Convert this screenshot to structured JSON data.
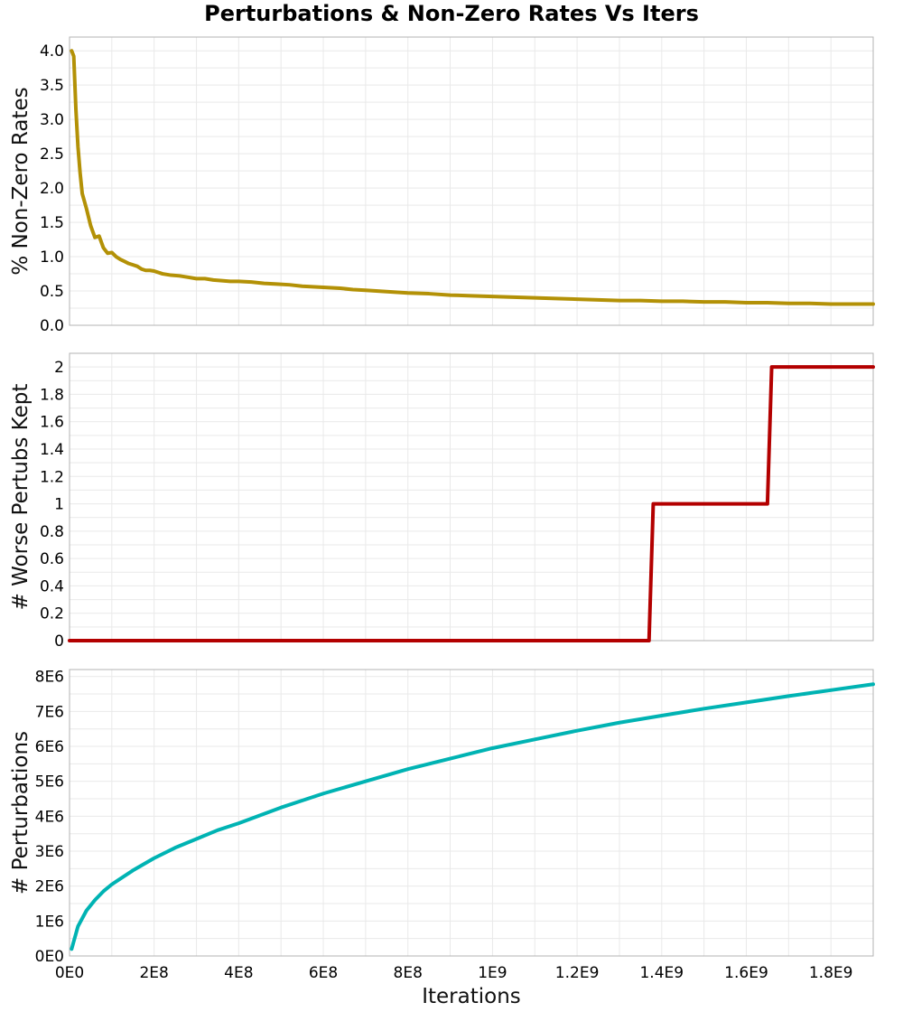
{
  "chart_data": {
    "title": "Perturbations & Non-Zero Rates Vs Iters",
    "type": "line",
    "shared_x": {
      "label": "Iterations",
      "range": [
        0,
        1900000000
      ],
      "ticks": [
        0,
        200000000,
        400000000,
        600000000,
        800000000,
        1000000000,
        1200000000,
        1400000000,
        1600000000,
        1800000000
      ],
      "tick_labels": [
        "0E0",
        "2E8",
        "4E8",
        "6E8",
        "8E8",
        "1E9",
        "1.2E9",
        "1.4E9",
        "1.6E9",
        "1.8E9"
      ]
    },
    "grid": true,
    "panels": [
      {
        "ylabel": "% Non-Zero Rates",
        "ylim": [
          0,
          4.2
        ],
        "yticks": [
          0,
          0.5,
          1,
          1.5,
          2,
          2.5,
          3,
          3.5,
          4
        ],
        "ytick_labels": [
          "0.0",
          "0.5",
          "1.0",
          "1.5",
          "2.0",
          "2.5",
          "3.0",
          "3.5",
          "4.0"
        ],
        "color": "#b39106",
        "series": [
          {
            "x": [
              5000000,
              10000000,
              15000000,
              20000000,
              25000000,
              30000000,
              40000000,
              50000000,
              60000000,
              70000000,
              80000000,
              90000000,
              100000000,
              110000000,
              120000000,
              130000000,
              140000000,
              150000000,
              160000000,
              170000000,
              180000000,
              190000000,
              200000000,
              220000000,
              240000000,
              260000000,
              280000000,
              300000000,
              320000000,
              340000000,
              360000000,
              380000000,
              400000000,
              430000000,
              460000000,
              490000000,
              520000000,
              550000000,
              580000000,
              610000000,
              640000000,
              670000000,
              700000000,
              750000000,
              800000000,
              850000000,
              900000000,
              950000000,
              1000000000,
              1050000000,
              1100000000,
              1150000000,
              1200000000,
              1250000000,
              1300000000,
              1350000000,
              1400000000,
              1450000000,
              1500000000,
              1550000000,
              1600000000,
              1650000000,
              1700000000,
              1750000000,
              1800000000,
              1850000000,
              1900000000
            ],
            "y": [
              4.0,
              3.92,
              3.15,
              2.6,
              2.22,
              1.92,
              1.7,
              1.45,
              1.28,
              1.3,
              1.13,
              1.05,
              1.06,
              1.0,
              0.96,
              0.93,
              0.9,
              0.88,
              0.86,
              0.82,
              0.8,
              0.8,
              0.79,
              0.75,
              0.73,
              0.72,
              0.7,
              0.68,
              0.68,
              0.66,
              0.65,
              0.64,
              0.64,
              0.63,
              0.61,
              0.6,
              0.59,
              0.57,
              0.56,
              0.55,
              0.54,
              0.52,
              0.51,
              0.49,
              0.47,
              0.46,
              0.44,
              0.43,
              0.42,
              0.41,
              0.4,
              0.39,
              0.38,
              0.37,
              0.36,
              0.36,
              0.35,
              0.35,
              0.34,
              0.34,
              0.33,
              0.33,
              0.32,
              0.32,
              0.31,
              0.31,
              0.31
            ]
          }
        ]
      },
      {
        "ylabel": "# Worse Pertubs Kept",
        "ylim": [
          0,
          2.1
        ],
        "yticks": [
          0,
          0.2,
          0.4,
          0.6,
          0.8,
          1,
          1.2,
          1.4,
          1.6,
          1.8,
          2
        ],
        "ytick_labels": [
          "0",
          "0.2",
          "0.4",
          "0.6",
          "0.8",
          "1",
          "1.2",
          "1.4",
          "1.6",
          "1.8",
          "2"
        ],
        "color": "#b30000",
        "series": [
          {
            "x": [
              0,
              1370000000,
              1380000000,
              1650000000,
              1660000000,
              1900000000
            ],
            "y": [
              0,
              0,
              1,
              1,
              2,
              2
            ]
          }
        ]
      },
      {
        "ylabel": "# Perturbations",
        "ylim": [
          0,
          8200000
        ],
        "yticks": [
          0,
          1000000,
          2000000,
          3000000,
          4000000,
          5000000,
          6000000,
          7000000,
          8000000
        ],
        "ytick_labels": [
          "0E0",
          "1E6",
          "2E6",
          "3E6",
          "4E6",
          "5E6",
          "6E6",
          "7E6",
          "8E6"
        ],
        "color": "#00b3b3",
        "series": [
          {
            "x": [
              5000000,
              20000000,
              40000000,
              60000000,
              80000000,
              100000000,
              150000000,
              200000000,
              250000000,
              300000000,
              350000000,
              400000000,
              500000000,
              600000000,
              700000000,
              800000000,
              900000000,
              1000000000,
              1100000000,
              1200000000,
              1300000000,
              1400000000,
              1500000000,
              1600000000,
              1700000000,
              1800000000,
              1900000000
            ],
            "y": [
              200000,
              850000,
              1300000,
              1600000,
              1850000,
              2050000,
              2450000,
              2800000,
              3100000,
              3350000,
              3600000,
              3800000,
              4250000,
              4650000,
              5000000,
              5350000,
              5650000,
              5950000,
              6200000,
              6450000,
              6680000,
              6880000,
              7080000,
              7260000,
              7440000,
              7610000,
              7780000
            ]
          }
        ]
      }
    ]
  }
}
